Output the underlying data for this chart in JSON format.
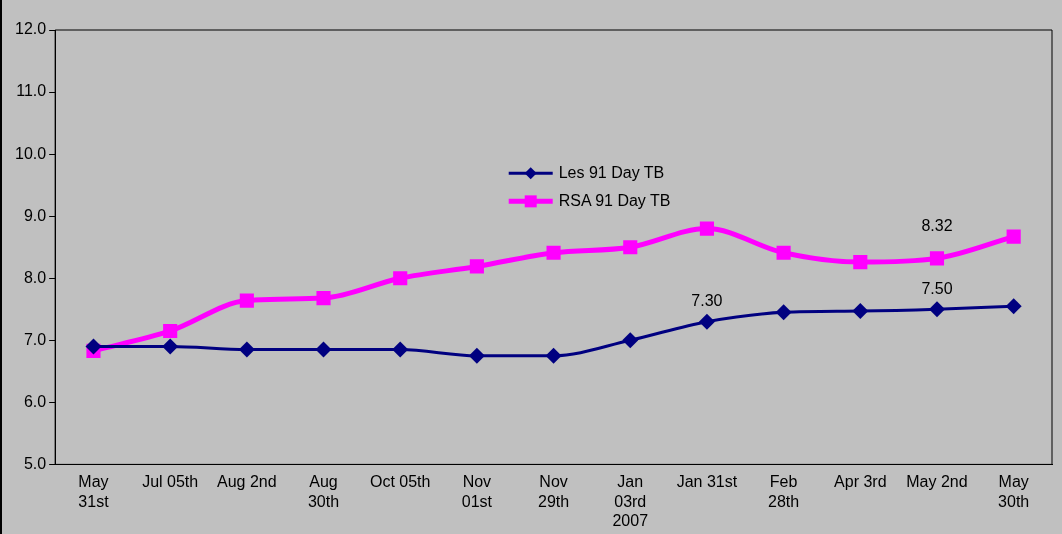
{
  "chart_data": {
    "type": "line",
    "categories": [
      "May\n31st",
      "Jul 05th",
      "Aug 2nd",
      "Aug\n30th",
      "Oct 05th",
      "Nov\n01st",
      "Nov\n29th",
      "Jan\n03rd\n2007",
      "Jan 31st",
      "Feb\n28th",
      "Apr 3rd",
      "May 2nd",
      "May\n30th"
    ],
    "series": [
      {
        "name": "Les 91 Day TB",
        "color": "#000080",
        "marker": "diamond",
        "values": [
          6.9,
          6.9,
          6.85,
          6.85,
          6.85,
          6.75,
          6.75,
          7.0,
          7.3,
          7.45,
          7.47,
          7.5,
          7.55
        ],
        "value_labels": [
          null,
          null,
          null,
          null,
          null,
          null,
          null,
          null,
          "7.30",
          null,
          null,
          "7.50",
          null
        ]
      },
      {
        "name": "RSA 91 Day TB",
        "color": "#ff00ff",
        "marker": "square",
        "values": [
          6.83,
          7.15,
          7.64,
          7.68,
          8.0,
          8.19,
          8.41,
          8.5,
          8.8,
          8.41,
          8.26,
          8.32,
          8.67
        ],
        "value_labels": [
          null,
          null,
          null,
          null,
          null,
          null,
          null,
          null,
          null,
          null,
          null,
          "8.32",
          null
        ]
      }
    ],
    "ylim": [
      5,
      12
    ],
    "yticks": [
      {
        "value": 5,
        "label": "5.0"
      },
      {
        "value": 6,
        "label": "6.0"
      },
      {
        "value": 7,
        "label": "7.0"
      },
      {
        "value": 8,
        "label": "8.0"
      },
      {
        "value": 9,
        "label": "9.0"
      },
      {
        "value": 10,
        "label": "10.0"
      },
      {
        "value": 11,
        "label": "11.0"
      },
      {
        "value": 12,
        "label": "12.0"
      }
    ],
    "grid": false,
    "legend": "top"
  }
}
